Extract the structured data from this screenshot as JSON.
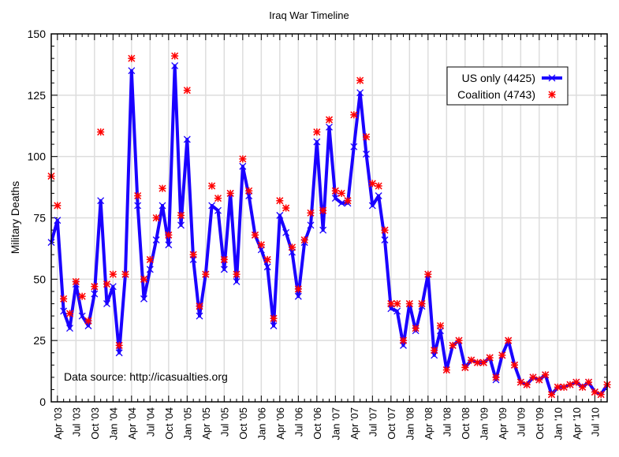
{
  "chart_data": {
    "type": "line",
    "title": "Iraq War Timeline",
    "ylabel": "Military Deaths",
    "xlabel": "",
    "ylim": [
      0,
      150
    ],
    "yticks": [
      0,
      25,
      50,
      75,
      100,
      125,
      150
    ],
    "x_start": "2003-03",
    "xtick_labels": [
      "Apr '03",
      "Jul '03",
      "Oct '03",
      "Jan '04",
      "Apr '04",
      "Jul '04",
      "Oct '04",
      "Jan '05",
      "Apr '05",
      "Jul '05",
      "Oct '05",
      "Jan '06",
      "Apr '06",
      "Jul '06",
      "Oct '06",
      "Jan '07",
      "Apr '07",
      "Jul '07",
      "Oct '07",
      "Jan '08",
      "Apr '08",
      "Jul '08",
      "Oct '08",
      "Jan '09",
      "Apr '09",
      "Jul '09",
      "Oct '09",
      "Jan '10",
      "Apr '10",
      "Jul '10"
    ],
    "grid": true,
    "legend_position": "top-right",
    "annotation": "Data source: http://icasualties.org",
    "series": [
      {
        "name": "US only (4425)",
        "color": "#1a00ff",
        "marker": "x",
        "line": true,
        "values": [
          65,
          74,
          37,
          30,
          48,
          35,
          31,
          44,
          82,
          40,
          47,
          20,
          52,
          135,
          80,
          42,
          54,
          66,
          80,
          64,
          137,
          72,
          107,
          58,
          35,
          52,
          80,
          78,
          54,
          85,
          49,
          96,
          84,
          68,
          62,
          55,
          31,
          76,
          69,
          61,
          43,
          65,
          72,
          106,
          70,
          112,
          83,
          81,
          81,
          104,
          126,
          101,
          80,
          84,
          66,
          38,
          37,
          23,
          40,
          29,
          39,
          52,
          19,
          29,
          13,
          23,
          25,
          14,
          17,
          16,
          16,
          18,
          9,
          19,
          25,
          15,
          8,
          7,
          10,
          9,
          11,
          3,
          6,
          6,
          7,
          8,
          6,
          8,
          4,
          3,
          7
        ]
      },
      {
        "name": "Coalition (4743)",
        "color": "#ff0000",
        "marker": "asterisk",
        "line": false,
        "values": [
          92,
          80,
          42,
          36,
          49,
          43,
          33,
          47,
          110,
          48,
          52,
          23,
          52,
          140,
          84,
          50,
          58,
          75,
          87,
          68,
          141,
          76,
          127,
          60,
          39,
          52,
          88,
          83,
          58,
          85,
          52,
          99,
          86,
          68,
          64,
          58,
          34,
          82,
          79,
          63,
          46,
          66,
          77,
          110,
          78,
          115,
          86,
          85,
          82,
          117,
          131,
          108,
          89,
          88,
          70,
          40,
          40,
          25,
          40,
          30,
          40,
          52,
          21,
          31,
          13,
          23,
          25,
          14,
          17,
          16,
          16,
          18,
          10,
          19,
          25,
          15,
          8,
          7,
          10,
          9,
          11,
          3,
          6,
          6,
          7,
          8,
          6,
          8,
          4,
          3,
          7
        ]
      }
    ]
  }
}
